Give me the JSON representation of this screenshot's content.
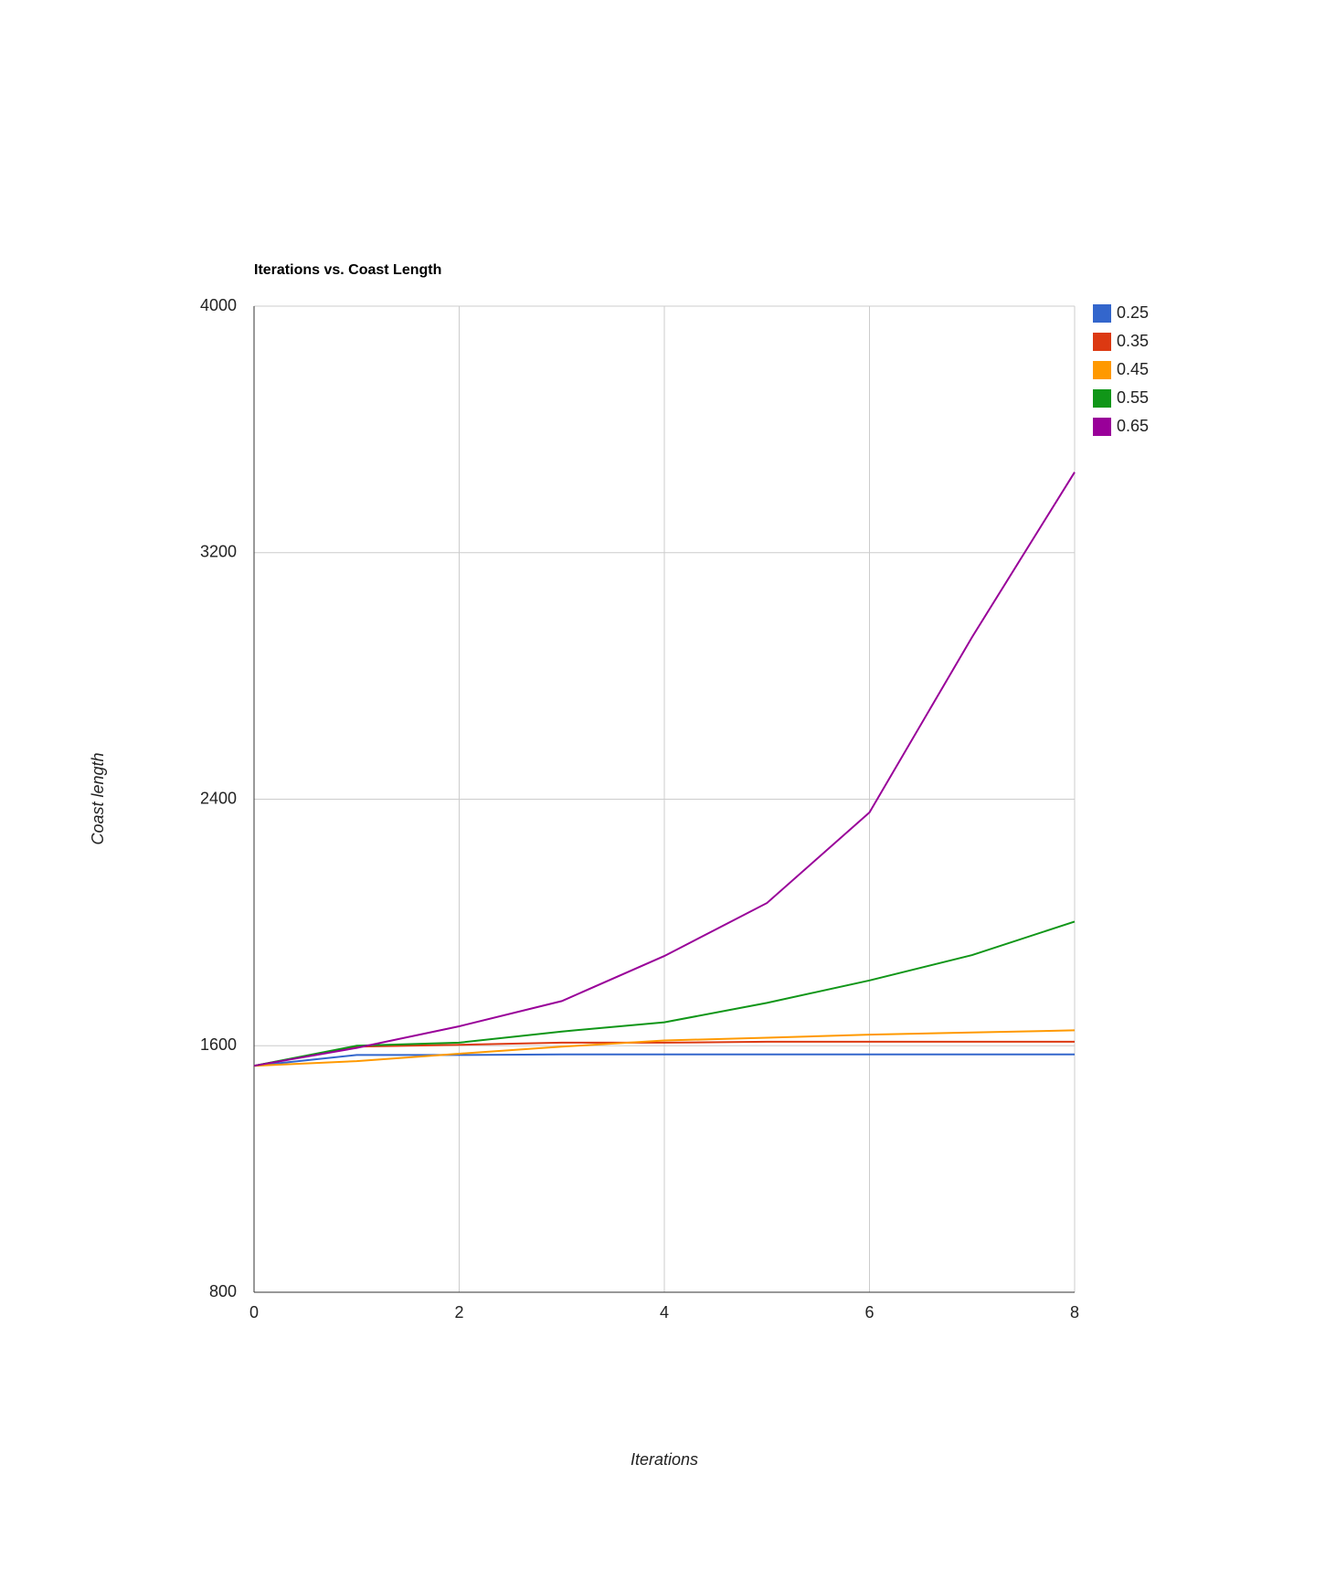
{
  "chart_data": {
    "type": "line",
    "title": "Iterations vs. Coast Length",
    "x_label": "Iterations",
    "y_label": "Coast length",
    "x": [
      0,
      1,
      2,
      3,
      4,
      5,
      6,
      7,
      8
    ],
    "xlim": [
      0,
      8
    ],
    "xticks": [
      0,
      2,
      4,
      6,
      8
    ],
    "ylim": [
      800,
      4000
    ],
    "yticks": [
      800,
      1600,
      2400,
      3200,
      4000
    ],
    "grid": true,
    "legend": "right",
    "series": [
      {
        "name": "0.25",
        "color": "#3366cc",
        "values": [
          1535,
          1570,
          1570,
          1572,
          1572,
          1572,
          1572,
          1572,
          1572
        ]
      },
      {
        "name": "0.35",
        "color": "#dc3912",
        "values": [
          1535,
          1597,
          1603,
          1610,
          1610,
          1613,
          1613,
          1613,
          1613
        ]
      },
      {
        "name": "0.45",
        "color": "#ff9900",
        "values": [
          1535,
          1550,
          1574,
          1597,
          1617,
          1626,
          1636,
          1643,
          1650
        ]
      },
      {
        "name": "0.55",
        "color": "#109618",
        "values": [
          1535,
          1600,
          1610,
          1646,
          1676,
          1739,
          1812,
          1894,
          2003
        ]
      },
      {
        "name": "0.65",
        "color": "#990099",
        "values": [
          1535,
          1593,
          1663,
          1745,
          1891,
          2063,
          2357,
          2926,
          3461
        ]
      }
    ]
  }
}
